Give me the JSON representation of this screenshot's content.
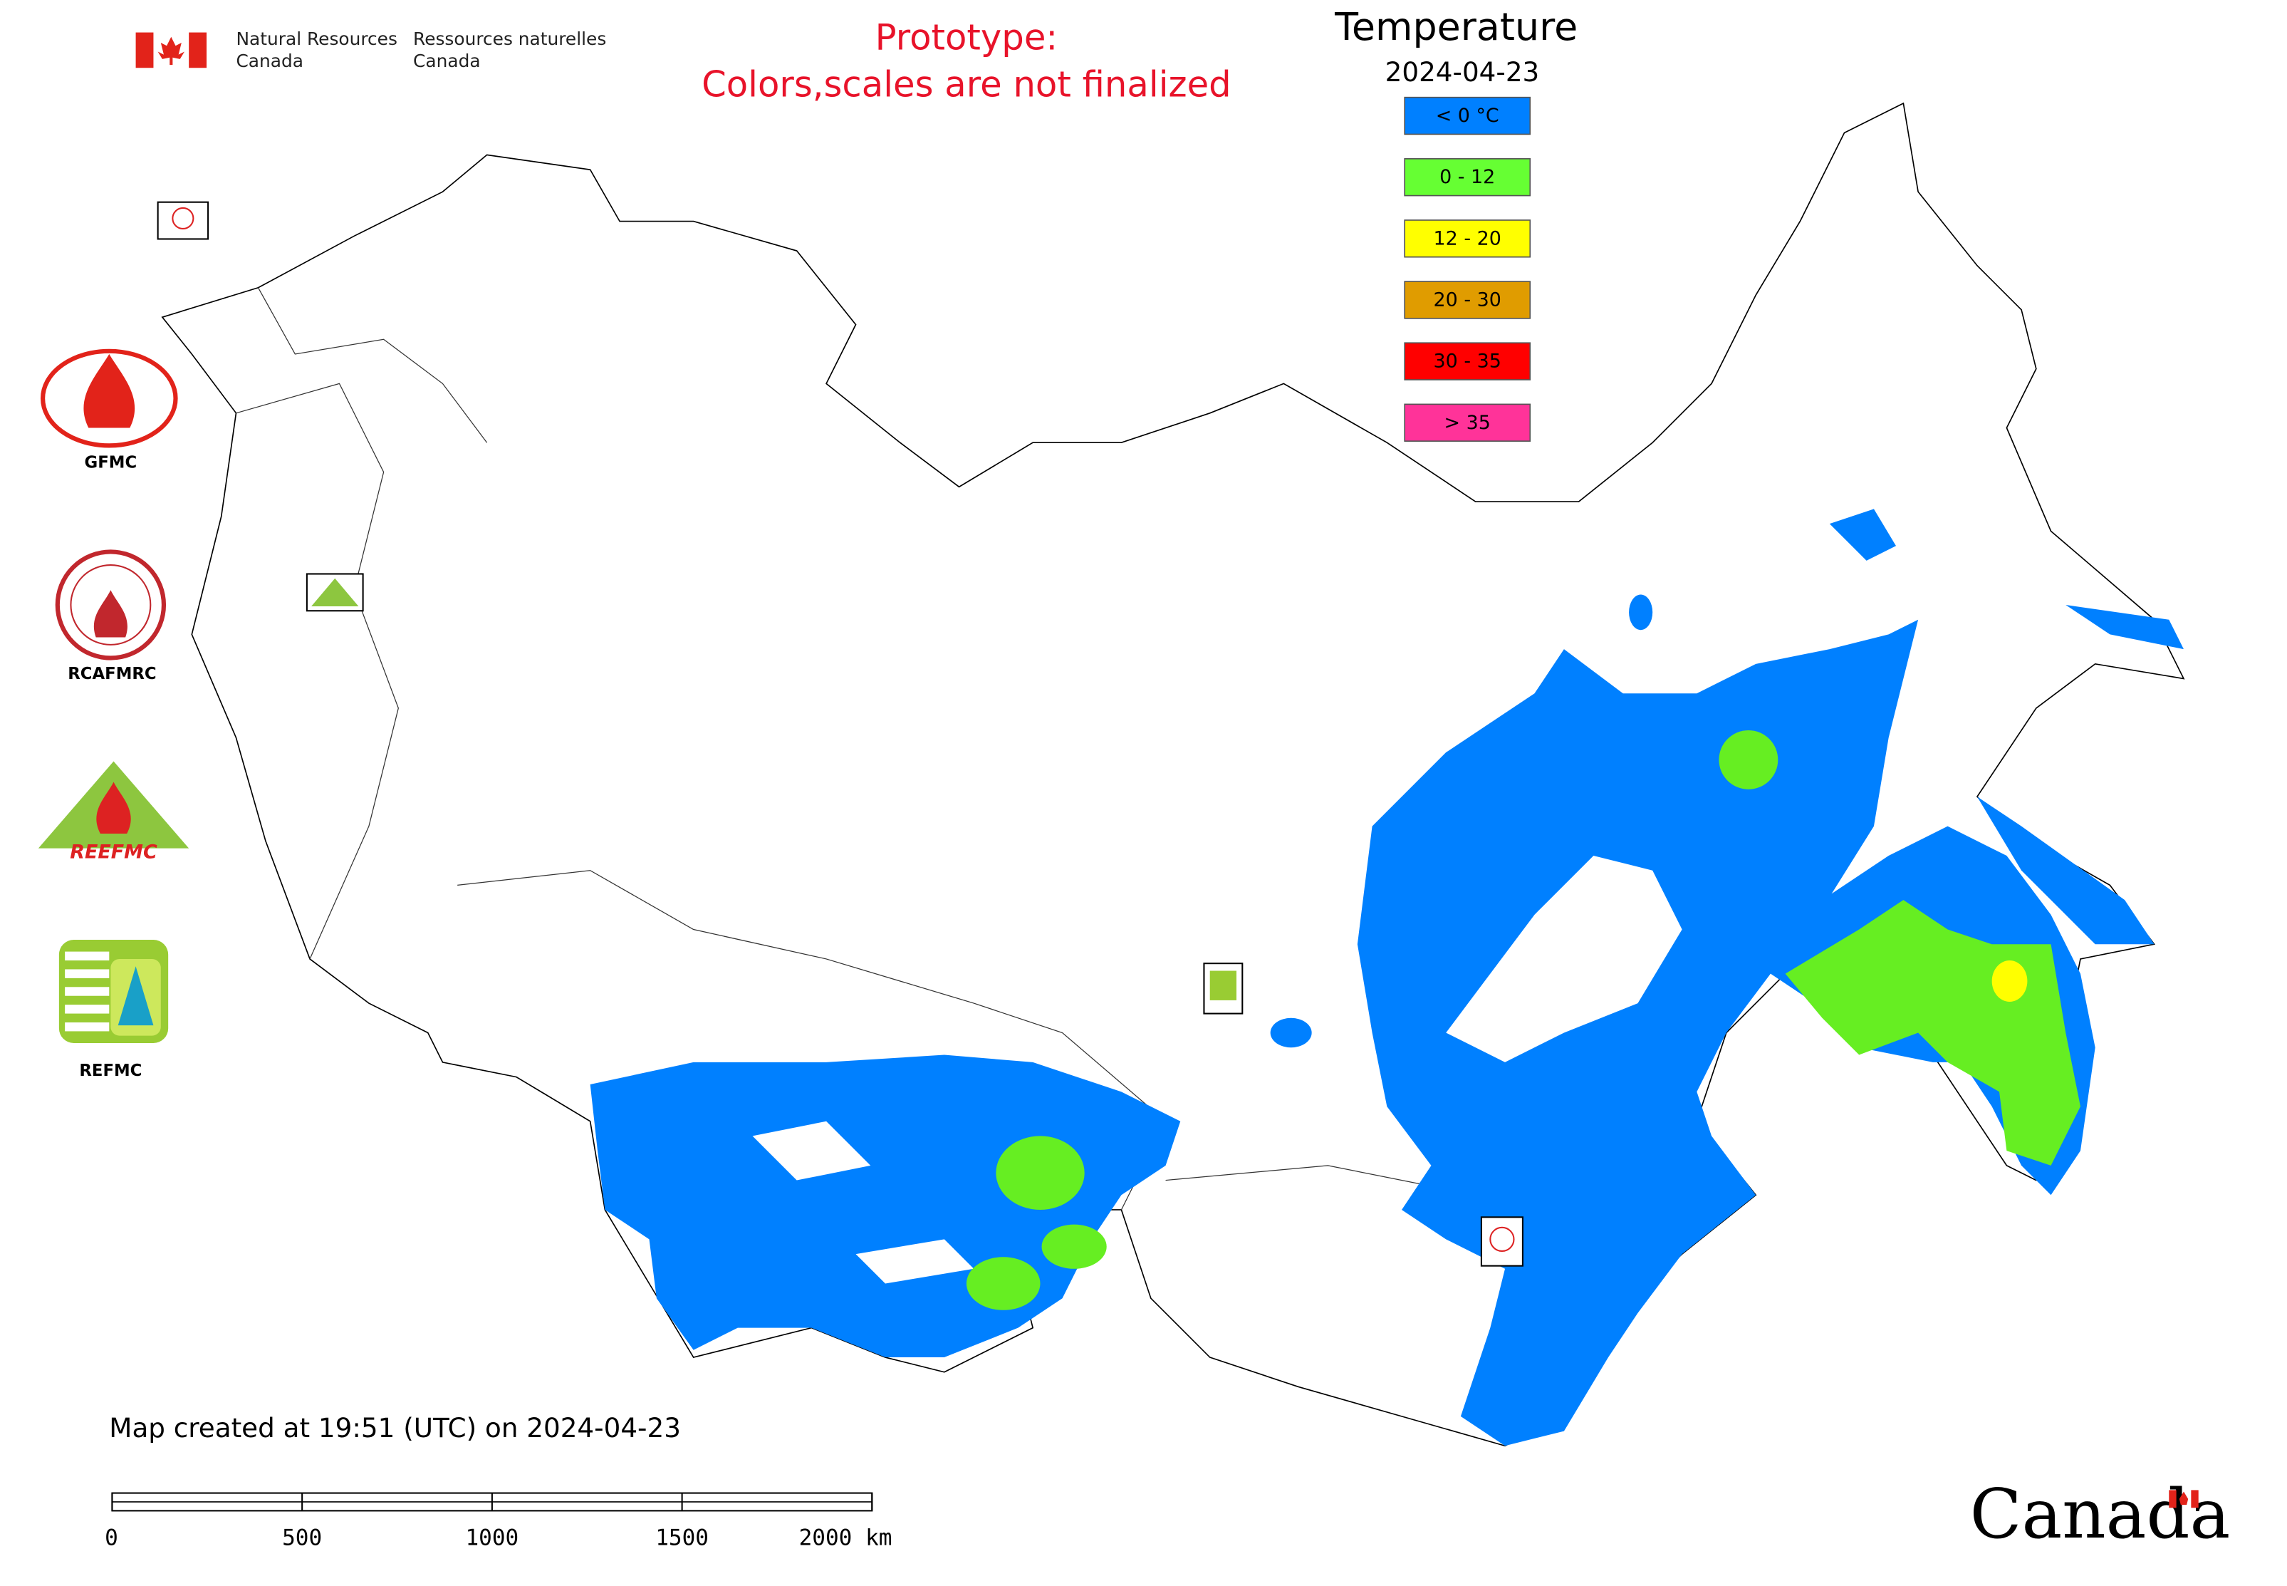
{
  "header": {
    "department_en": [
      "Natural Resources",
      "Canada"
    ],
    "department_fr": [
      "Ressources naturelles",
      "Canada"
    ],
    "notice": [
      "Prototype:",
      "Colors,scales are not finalized"
    ]
  },
  "legend": {
    "title": "Temperature",
    "date": "2024-04-23",
    "items": [
      {
        "label": "< 0 °C",
        "color": "#0080ff"
      },
      {
        "label": "0 - 12",
        "color": "#66ff33"
      },
      {
        "label": "12 - 20",
        "color": "#ffff00"
      },
      {
        "label": "20 - 30",
        "color": "#e09c00"
      },
      {
        "label": "30 - 35",
        "color": "#ff0000"
      },
      {
        "label": "> 35",
        "color": "#ff3399"
      }
    ]
  },
  "logos": [
    "GFMC",
    "RCAFMRC",
    "REEFMC",
    "REFMC"
  ],
  "footnote": "Map created at 19:51 (UTC) on 2024-04-23",
  "scale_bar": {
    "range": [
      0,
      2000
    ],
    "ticks": [
      0,
      500,
      1000,
      1500,
      {
        "value": 2000,
        "label": "2000 km"
      }
    ]
  },
  "wordmark": "Canada"
}
